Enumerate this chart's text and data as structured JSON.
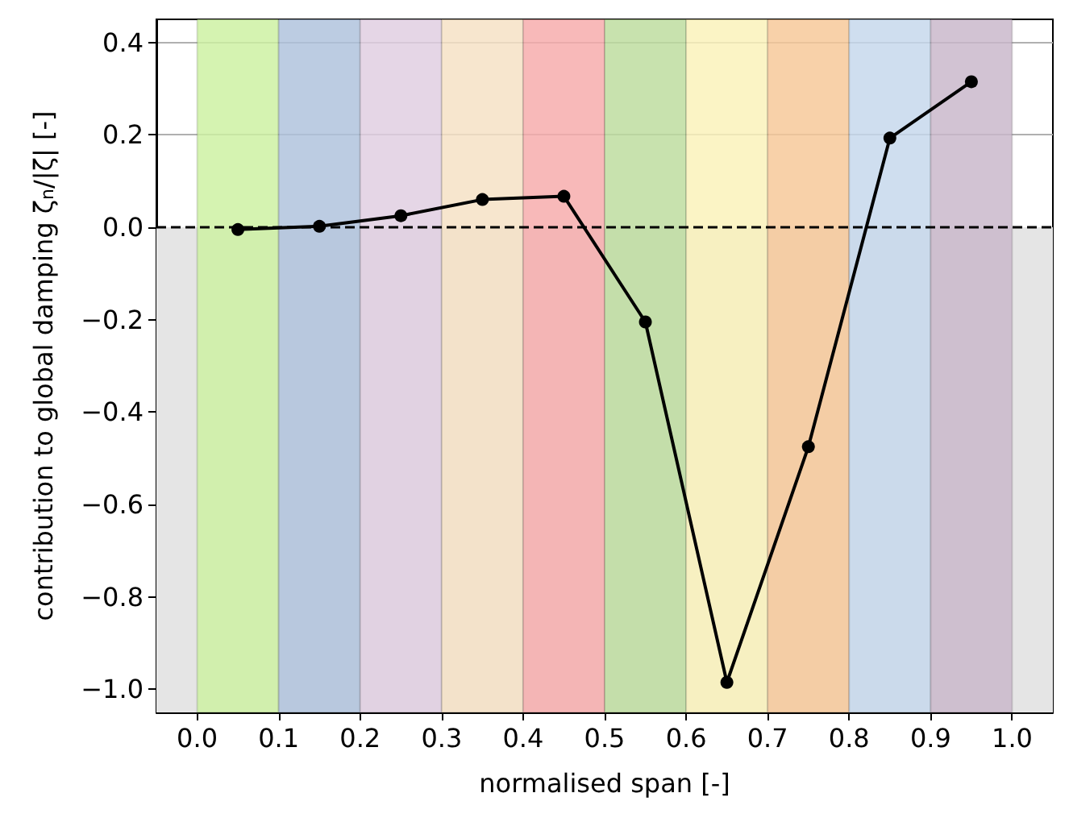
{
  "chart_data": {
    "type": "line",
    "xlabel": "normalised span [-]",
    "ylabel": "contribution to global damping ζ$_{n}$/|ζ| [-]",
    "x": [
      0.05,
      0.15,
      0.25,
      0.35,
      0.45,
      0.55,
      0.65,
      0.75,
      0.85,
      0.95
    ],
    "series": [
      {
        "color": "#000000",
        "values": [
          -0.005,
          0.002,
          0.025,
          0.06,
          0.067,
          -0.205,
          -0.985,
          -0.475,
          0.193,
          0.315
        ]
      }
    ],
    "xlim": [
      -0.05,
      1.05
    ],
    "xticks": [
      {
        "value": 0,
        "label": "0.0"
      },
      {
        "value": 0.1,
        "label": "0.1"
      },
      {
        "value": 0.2,
        "label": "0.2"
      },
      {
        "value": 0.3,
        "label": "0.3"
      },
      {
        "value": 0.4,
        "label": "0.4"
      },
      {
        "value": 0.5,
        "label": "0.5"
      },
      {
        "value": 0.6,
        "label": "0.6"
      },
      {
        "value": 0.7,
        "label": "0.7"
      },
      {
        "value": 0.8,
        "label": "0.8"
      },
      {
        "value": 0.9,
        "label": "0.9"
      },
      {
        "value": 1,
        "label": "1.0"
      }
    ],
    "ylim": [
      -1.05,
      0.45
    ],
    "yticks": [
      {
        "value": -1,
        "label": "−1.0"
      },
      {
        "value": -0.8,
        "label": "−0.8"
      },
      {
        "value": -0.6,
        "label": "−0.6"
      },
      {
        "value": -0.4,
        "label": "−0.4"
      },
      {
        "value": -0.2,
        "label": "−0.2"
      },
      {
        "value": 0,
        "label": "0.0"
      },
      {
        "value": 0.2,
        "label": "0.2"
      },
      {
        "value": 0.4,
        "label": "0.4"
      }
    ],
    "grid": "y",
    "marker": "circle",
    "line_style": "solid",
    "ref_lines": [
      {
        "axis": "y",
        "value": 0,
        "color": "#000000",
        "line_style": "dashed"
      }
    ],
    "bands": [
      {
        "axis": "y",
        "from": -1.05,
        "to": 0,
        "color": "#e5e5e5"
      },
      {
        "axis": "x",
        "from": 0,
        "to": 0.1,
        "color": "#ccf0a0"
      },
      {
        "axis": "x",
        "from": 0.1,
        "to": 0.2,
        "color": "#adc1dc"
      },
      {
        "axis": "x",
        "from": 0.2,
        "to": 0.3,
        "color": "#dfcde0"
      },
      {
        "axis": "x",
        "from": 0.3,
        "to": 0.4,
        "color": "#f5e1c3"
      },
      {
        "axis": "x",
        "from": 0.4,
        "to": 0.5,
        "color": "#f6a9a9"
      },
      {
        "axis": "x",
        "from": 0.5,
        "to": 0.6,
        "color": "#bcdc9c"
      },
      {
        "axis": "x",
        "from": 0.6,
        "to": 0.7,
        "color": "#faf2b8"
      },
      {
        "axis": "x",
        "from": 0.7,
        "to": 0.8,
        "color": "#f7c796"
      },
      {
        "axis": "x",
        "from": 0.8,
        "to": 0.9,
        "color": "#c5d7ec"
      },
      {
        "axis": "x",
        "from": 0.9,
        "to": 1.0,
        "color": "#c8b6c9"
      }
    ]
  }
}
